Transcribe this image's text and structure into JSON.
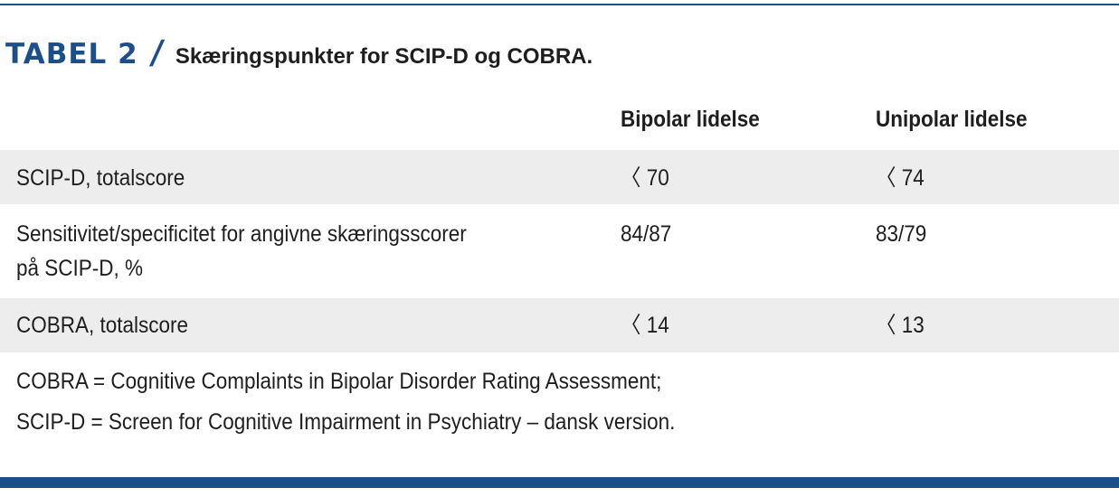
{
  "heading": {
    "label": "TABEL 2",
    "separator": "/",
    "title": "Skæringspunkter for SCIP-D og COBRA."
  },
  "columns": [
    "Bipolar lidelse",
    "Unipolar lidelse"
  ],
  "rows": [
    {
      "label_line1": "SCIP-D, totalscore",
      "label_line2": "",
      "bipolar": "〈 70",
      "unipolar": "〈 74"
    },
    {
      "label_line1": "Sensitivitet/specificitet for angivne skæringsscorer",
      "label_line2": "på SCIP-D, %",
      "bipolar": "84/87",
      "unipolar": "83/79"
    },
    {
      "label_line1": "COBRA, totalscore",
      "label_line2": "",
      "bipolar": "〈 14",
      "unipolar": "〈 13"
    }
  ],
  "footnotes": [
    "COBRA = Cognitive Complaints in Bipolar Disorder Rating Assessment;",
    "SCIP-D = Screen for Cognitive Impairment in Psychiatry – dansk version."
  ],
  "colors": {
    "accent": "#1c4f8a",
    "row_shade": "#ededed",
    "text": "#1e1e1e"
  }
}
